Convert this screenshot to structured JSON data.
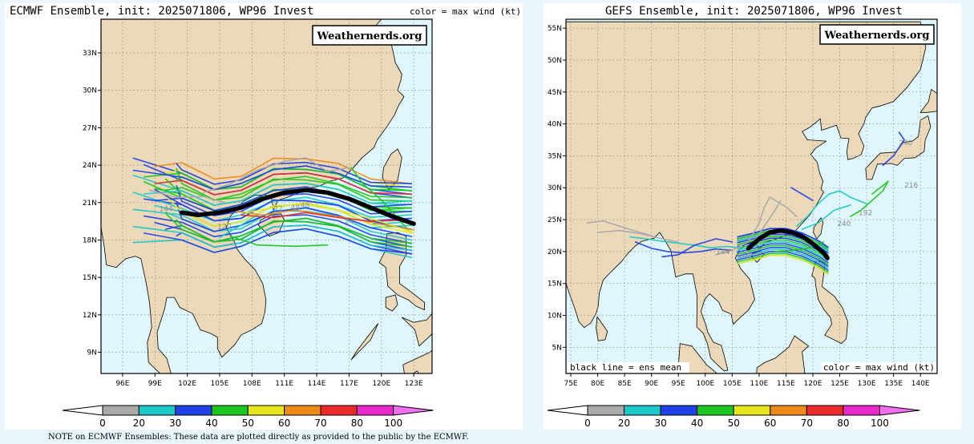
{
  "left_panel": {
    "title": "ECMWF Ensemble, init: 2025071806, WP96 Invest",
    "subtitle": "color = max wind (kt)",
    "watermark": "Weathernerds.org",
    "lon_labels": [
      "96E",
      "99E",
      "102E",
      "105E",
      "108E",
      "111E",
      "114E",
      "117E",
      "120E",
      "123E"
    ],
    "lat_labels": [
      "33N",
      "30N",
      "27N",
      "24N",
      "21N",
      "18N",
      "15N",
      "12N",
      "9N"
    ],
    "track_labels": [
      {
        "text": "72",
        "lon": 110.0,
        "lat": 20.3
      },
      {
        "text": "48",
        "lon": 111.6,
        "lat": 20.4
      },
      {
        "text": "48",
        "lon": 112.5,
        "lat": 20.6
      },
      {
        "text": "24",
        "lon": 116.6,
        "lat": 19.3
      },
      {
        "text": "120",
        "lon": 104.8,
        "lat": 18.9
      },
      {
        "text": "144",
        "lon": 99.4,
        "lat": 20.3
      }
    ]
  },
  "right_panel": {
    "title": "GEFS Ensemble, init: 2025071806, WP96 Invest",
    "watermark": "Weathernerds.org",
    "legend_left": "black line = ens mean",
    "legend_right": "color = max wind (kt)",
    "lon_labels": [
      "75E",
      "80E",
      "85E",
      "90E",
      "95E",
      "100E",
      "105E",
      "110E",
      "115E",
      "120E",
      "125E",
      "130E",
      "135E",
      "140E"
    ],
    "lat_labels": [
      "55N",
      "50N",
      "45N",
      "40N",
      "35N",
      "30N",
      "25N",
      "20N",
      "15N",
      "10N",
      "5N"
    ],
    "track_labels": [
      {
        "text": "240",
        "lon": 136.0,
        "lat": 36.7
      },
      {
        "text": "216",
        "lon": 137.0,
        "lat": 30.0
      },
      {
        "text": "192",
        "lon": 128.5,
        "lat": 25.7
      },
      {
        "text": "240",
        "lon": 124.5,
        "lat": 24.0
      },
      {
        "text": "168",
        "lon": 106.0,
        "lat": 19.0
      },
      {
        "text": "144",
        "lon": 102.0,
        "lat": 19.6
      }
    ]
  },
  "colorbar": {
    "labels": [
      "0",
      "20",
      "30",
      "40",
      "50",
      "60",
      "70",
      "80",
      "100"
    ],
    "colors": [
      "#a9a9a9",
      "#1ec7c7",
      "#2040e8",
      "#1cc61c",
      "#e6e61c",
      "#ec8a1c",
      "#e82a2a",
      "#e82ac8",
      "#f070f0"
    ]
  },
  "note": "NOTE on ECMWF Ensembles: These data are plotted directly as provided to the public by the ECMWF."
}
